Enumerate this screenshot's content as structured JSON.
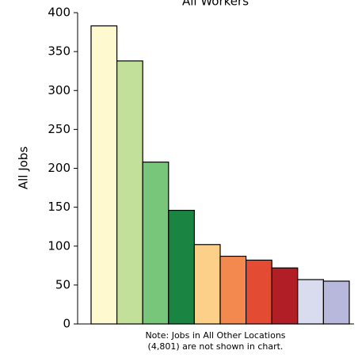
{
  "chart_data": {
    "type": "bar",
    "title": "All Workers",
    "y_label": "All Jobs",
    "categories": [
      null,
      null,
      null,
      null,
      null,
      null,
      null,
      null,
      null,
      null
    ],
    "values": [
      383,
      338,
      208,
      146,
      102,
      87,
      82,
      72,
      57,
      55
    ],
    "colors": [
      "#fef9cf",
      "#c2e09a",
      "#78c679",
      "#1a8443",
      "#fdd08a",
      "#f4894f",
      "#e34c32",
      "#b11e26",
      "#d9dbee",
      "#b7b8dc"
    ],
    "ylim": [
      0,
      400
    ],
    "yticks": [
      0,
      50,
      100,
      150,
      200,
      250,
      300,
      350,
      400
    ],
    "grid": false,
    "annotation": [
      "Note: Jobs in All Other Locations",
      "(4,801) are not shown in chart."
    ]
  }
}
